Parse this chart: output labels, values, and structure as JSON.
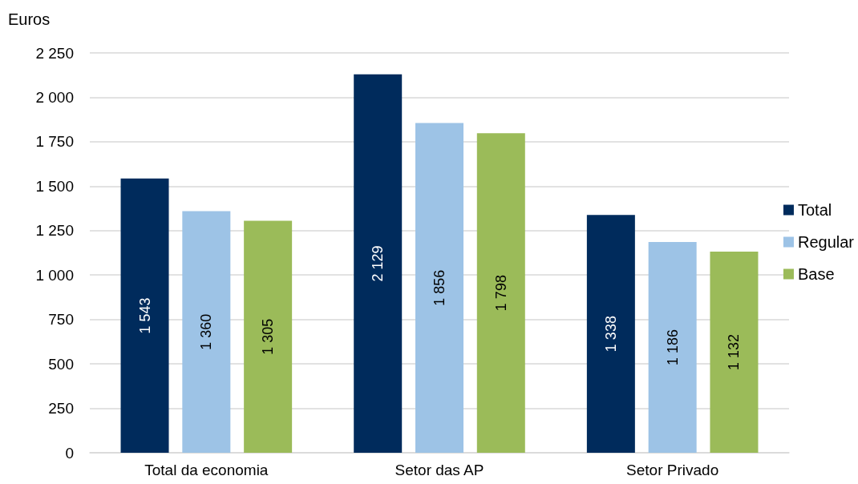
{
  "chart_data": {
    "type": "bar",
    "ylabel": "Euros",
    "categories": [
      "Total da economia",
      "Setor das AP",
      "Setor Privado"
    ],
    "series": [
      {
        "name": "Total",
        "color": "#002b5c",
        "values": [
          1543,
          2129,
          1338
        ],
        "value_labels": [
          "1 543",
          "2 129",
          "1 338"
        ]
      },
      {
        "name": "Regular",
        "color": "#9dc3e6",
        "values": [
          1360,
          1856,
          1186
        ],
        "value_labels": [
          "1 360",
          "1 856",
          "1 186"
        ]
      },
      {
        "name": "Base",
        "color": "#9bbb59",
        "values": [
          1305,
          1798,
          1132
        ],
        "value_labels": [
          "1 305",
          "1 798",
          "1 132"
        ]
      }
    ],
    "ylim": [
      0,
      2250
    ],
    "yticks": [
      0,
      250,
      500,
      750,
      {
        "value": 1000,
        "label": "1 000"
      },
      {
        "value": 1250,
        "label": "1 250"
      },
      {
        "value": 1500,
        "label": "1 500"
      },
      {
        "value": 1750,
        "label": "1 750"
      },
      {
        "value": 2000,
        "label": "2 000"
      },
      {
        "value": 2250,
        "label": "2 250"
      }
    ],
    "grid": "y",
    "legend": "right"
  }
}
